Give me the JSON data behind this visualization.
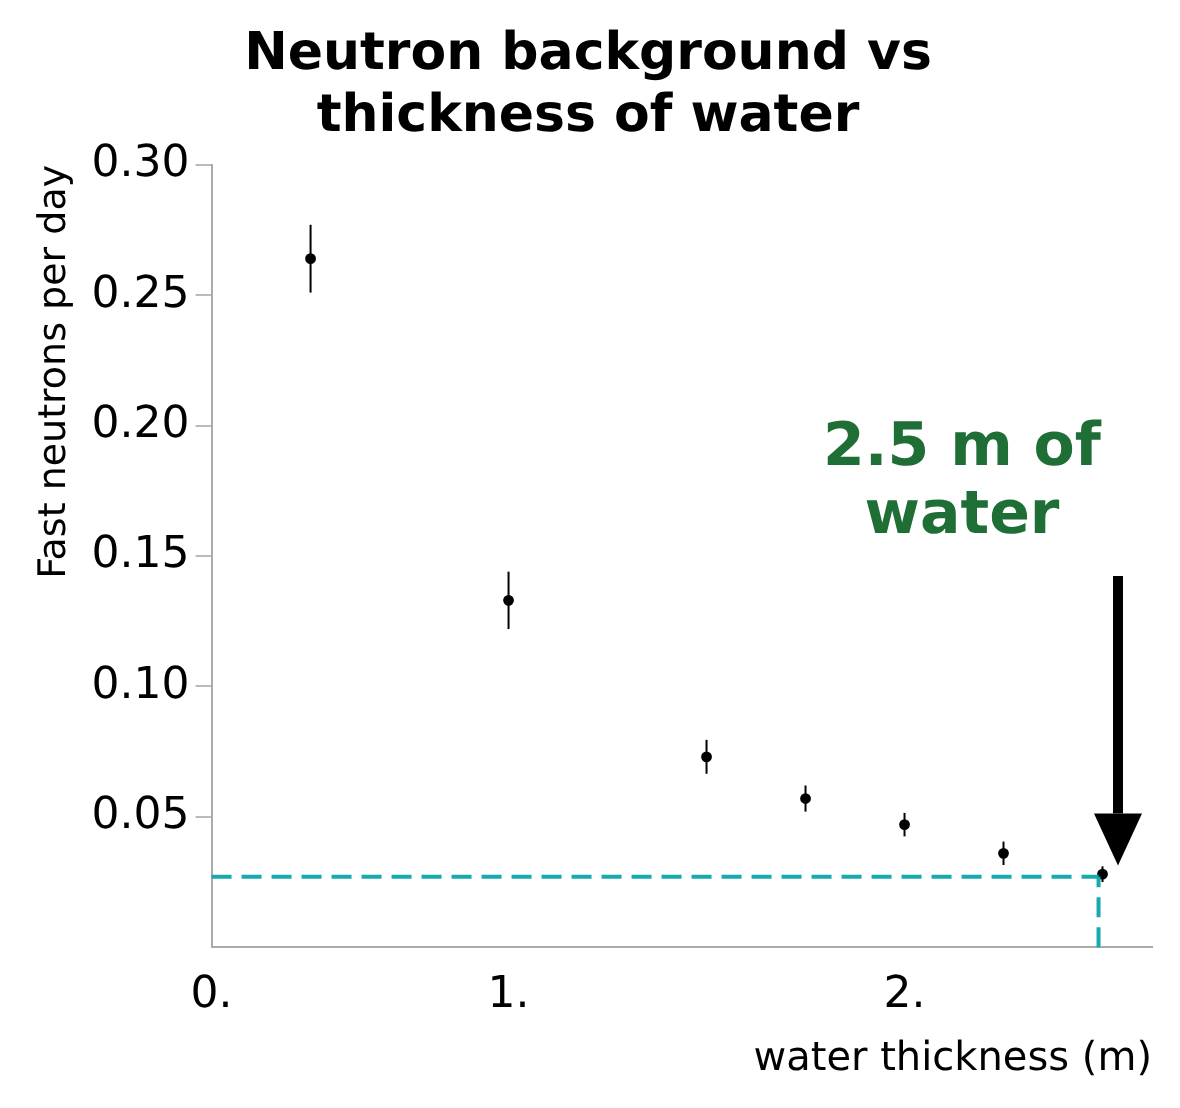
{
  "chart_data": {
    "type": "scatter",
    "title": "Neutron background vs thickness of water",
    "xlabel": "water thickness (m)",
    "ylabel": "Fast neutrons per day",
    "x": [
      0.5,
      1.0,
      1.5,
      1.75,
      2.0,
      2.25,
      2.5
    ],
    "series": [
      {
        "color": "#000000",
        "values": [
          0.264,
          0.133,
          0.073,
          0.057,
          0.047,
          0.036,
          0.028
        ],
        "errors": [
          0.013,
          0.011,
          0.0065,
          0.005,
          0.0045,
          0.0045,
          0.003
        ]
      }
    ],
    "xlim": [
      0.25,
      2.625
    ],
    "xticks": [
      {
        "value": 0.25,
        "label": "0."
      },
      {
        "value": 1,
        "label": "1."
      },
      {
        "value": 2,
        "label": "2."
      }
    ],
    "ylim": [
      0,
      0.3
    ],
    "yticks": [
      {
        "value": 0.05,
        "label": "0.05"
      },
      {
        "value": 0.1,
        "label": "0.10"
      },
      {
        "value": 0.15,
        "label": "0.15"
      },
      {
        "value": 0.2,
        "label": "0.20"
      },
      {
        "value": 0.25,
        "label": "0.25"
      },
      {
        "value": 0.3,
        "label": "0.30"
      }
    ],
    "ref_lines": [
      {
        "axis": "y",
        "value": 0.027,
        "color": "#17a9b0",
        "line_style": "dashed"
      },
      {
        "axis": "x",
        "value": 2.49,
        "color": "#17a9b0",
        "line_style": "dashed"
      }
    ],
    "annotations": [
      "2.5 m of water"
    ],
    "marker": "circle",
    "grid": false,
    "legend": false
  }
}
